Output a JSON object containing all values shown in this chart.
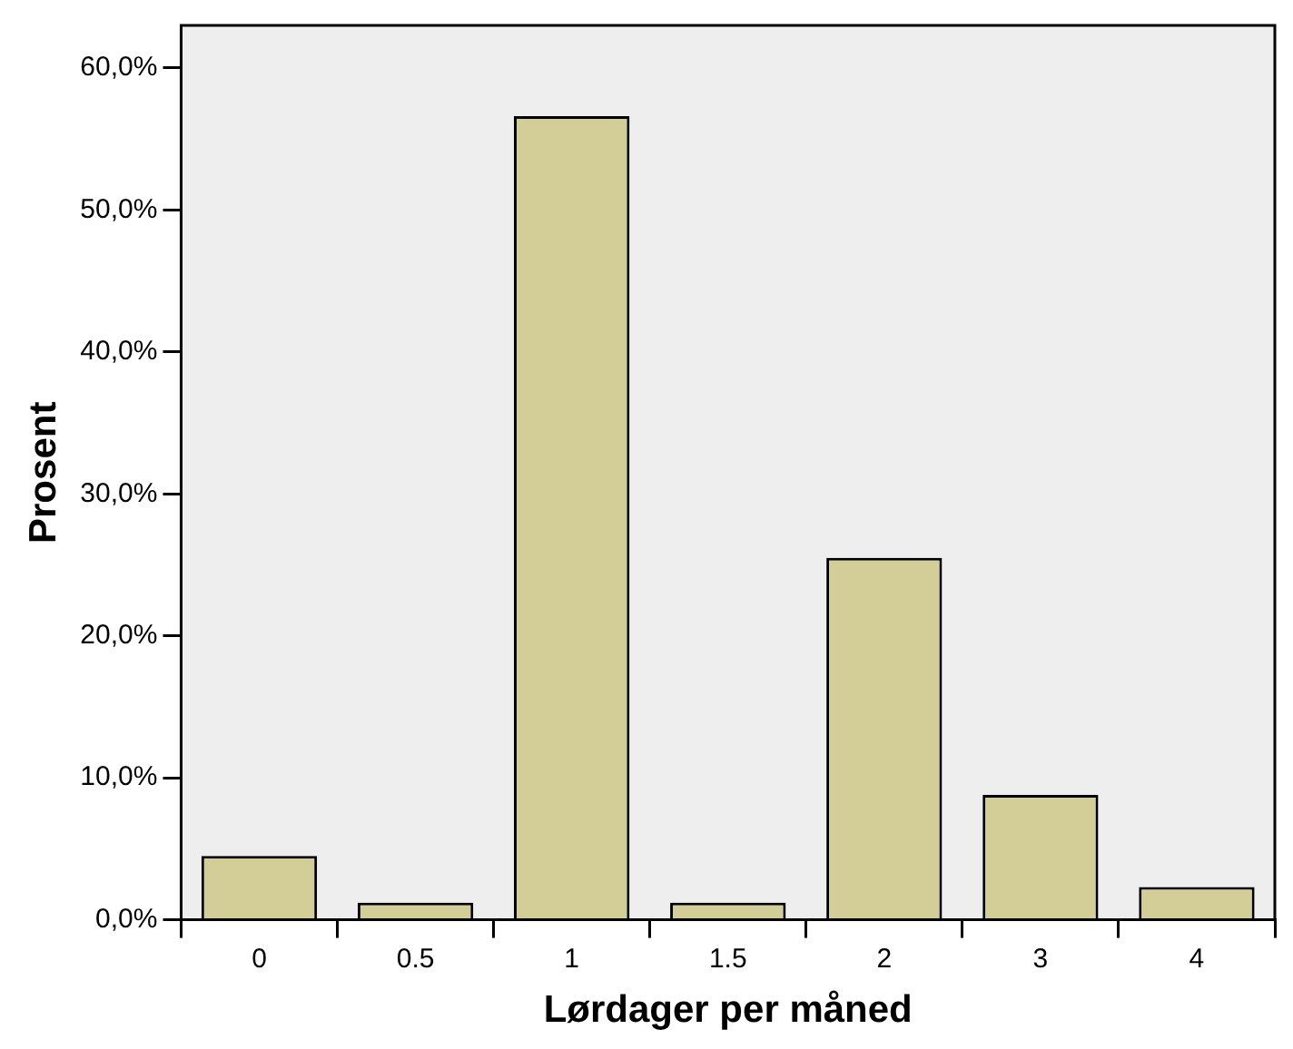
{
  "chart_data": {
    "type": "bar",
    "xlabel": "Lørdager per måned",
    "ylabel": "Prosent",
    "categories": [
      "0",
      "0.5",
      "1",
      "1.5",
      "2",
      "3",
      "4"
    ],
    "values": [
      4.5,
      1.2,
      56.6,
      1.2,
      25.5,
      8.8,
      2.3
    ],
    "color": "#d3ce97",
    "ylim": [
      0,
      63
    ],
    "yticks": [
      {
        "value": 0,
        "label": "0,0%"
      },
      {
        "value": 10,
        "label": "10,0%"
      },
      {
        "value": 20,
        "label": "20,0%"
      },
      {
        "value": 30,
        "label": "30,0%"
      },
      {
        "value": 40,
        "label": "40,0%"
      },
      {
        "value": 50,
        "label": "50,0%"
      },
      {
        "value": 60,
        "label": "60,0%"
      }
    ],
    "grid": false,
    "legend": false
  }
}
